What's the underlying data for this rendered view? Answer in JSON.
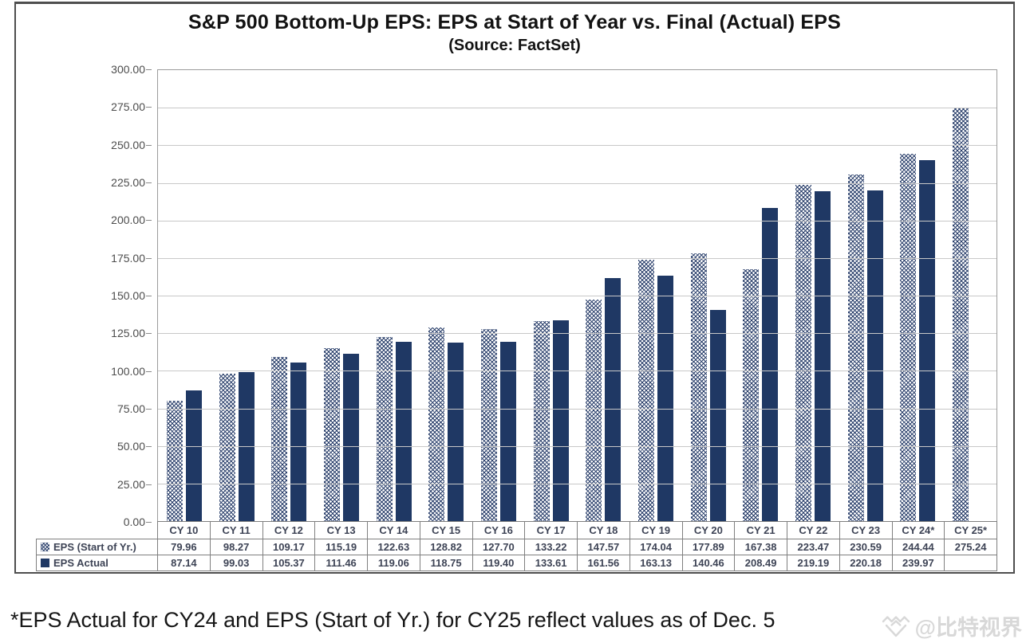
{
  "chart_data": {
    "type": "bar",
    "title": "S&P 500 Bottom-Up EPS: EPS at Start of Year vs. Final (Actual) EPS",
    "subtitle": "(Source: FactSet)",
    "categories": [
      "CY 10",
      "CY 11",
      "CY 12",
      "CY 13",
      "CY 14",
      "CY 15",
      "CY 16",
      "CY 17",
      "CY 18",
      "CY 19",
      "CY 20",
      "CY 21",
      "CY 22",
      "CY 23",
      "CY 24*",
      "CY 25*"
    ],
    "series": [
      {
        "name": "EPS (Start of Yr.)",
        "marker": "hatched",
        "values": [
          79.96,
          98.27,
          109.17,
          115.19,
          122.63,
          128.82,
          127.7,
          133.22,
          147.57,
          174.04,
          177.89,
          167.38,
          223.47,
          230.59,
          244.44,
          275.24
        ]
      },
      {
        "name": "EPS Actual",
        "marker": "solid",
        "values": [
          87.14,
          99.03,
          105.37,
          111.46,
          119.06,
          118.75,
          119.4,
          133.61,
          161.56,
          163.13,
          140.46,
          208.49,
          219.19,
          220.18,
          239.97,
          null
        ]
      }
    ],
    "ylim": [
      0,
      300
    ],
    "y_ticks": [
      0,
      25,
      50,
      75,
      100,
      125,
      150,
      175,
      200,
      225,
      250,
      275,
      300
    ],
    "y_tick_decimals": 2,
    "grid": true,
    "legend_position": "data-table-left",
    "data_table": true
  },
  "colors": {
    "actual_bar": "#1f3864",
    "hatch_line": "#2a3f6b",
    "gridline": "#c8c8c8",
    "plot_border": "#9c9c9c",
    "table_border": "#7f7f7f",
    "table_text": "#3d4355"
  },
  "footnote": "*EPS Actual for CY24 and EPS (Start of Yr.) for CY25 reflect values as of Dec. 5",
  "watermark": {
    "icon": "gem-chevron-icon",
    "text": "@比特视界"
  }
}
